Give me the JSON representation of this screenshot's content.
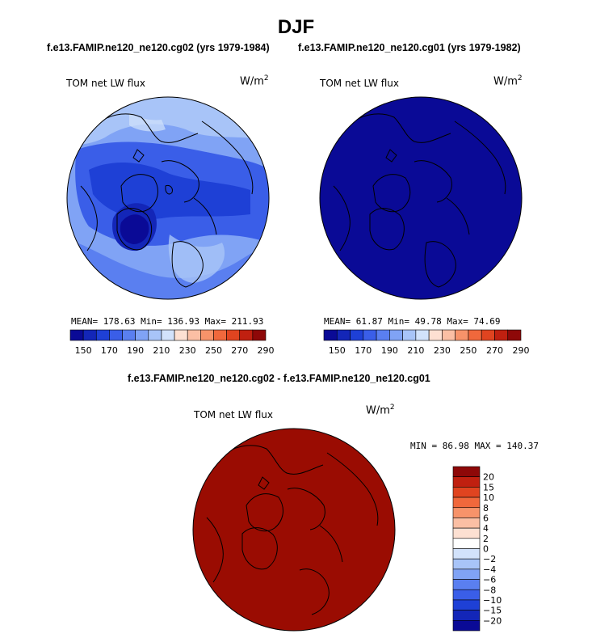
{
  "page_title": "DJF",
  "panel_a": {
    "subtitle": "f.e13.FAMIP.ne120_ne120.cg02 (yrs 1979-1984)",
    "variable": "TOM net LW flux",
    "units": "W/m",
    "units_sup": "2",
    "stats": "MEAN= 178.63  Min= 136.93  Max= 211.93"
  },
  "panel_b": {
    "subtitle": "f.e13.FAMIP.ne120_ne120.cg01 (yrs 1979-1982)",
    "variable": "TOM net LW flux",
    "units": "W/m",
    "units_sup": "2",
    "stats": "MEAN=  61.87  Min=  49.78  Max=  74.69"
  },
  "panel_diff": {
    "subtitle": "f.e13.FAMIP.ne120_ne120.cg02 - f.e13.FAMIP.ne120_ne120.cg01",
    "variable": "TOM net LW flux",
    "units": "W/m",
    "units_sup": "2",
    "stats": "MIN =  86.98 MAX = 140.37"
  },
  "colorbar_main": {
    "colors": [
      "#0a0a96",
      "#1326b8",
      "#1e40d6",
      "#3a5ee8",
      "#5a7ff0",
      "#80a3f5",
      "#a8c4f8",
      "#d2e2fb",
      "#fde0d2",
      "#fbbfa4",
      "#f7936a",
      "#f0683c",
      "#e04420",
      "#c02010",
      "#8e0808"
    ],
    "labels": [
      "150",
      "170",
      "190",
      "210",
      "230",
      "250",
      "270",
      "290"
    ]
  },
  "colorbar_diff": {
    "colors": [
      "#0a0a96",
      "#1326b8",
      "#1e40d6",
      "#3a5ee8",
      "#5a7ff0",
      "#80a3f5",
      "#a8c4f8",
      "#d2e2fb",
      "#ffffff",
      "#fde0d2",
      "#fbbfa4",
      "#f7936a",
      "#f0683c",
      "#e04420",
      "#c02010",
      "#8e0808"
    ],
    "labels": [
      "20",
      "15",
      "10",
      "8",
      "6",
      "4",
      "2",
      "0",
      "−2",
      "−4",
      "−6",
      "−8",
      "−10",
      "−15",
      "−20"
    ]
  },
  "fills": {
    "panel_b": "#0a0a96",
    "panel_diff": "#9a0c02"
  }
}
